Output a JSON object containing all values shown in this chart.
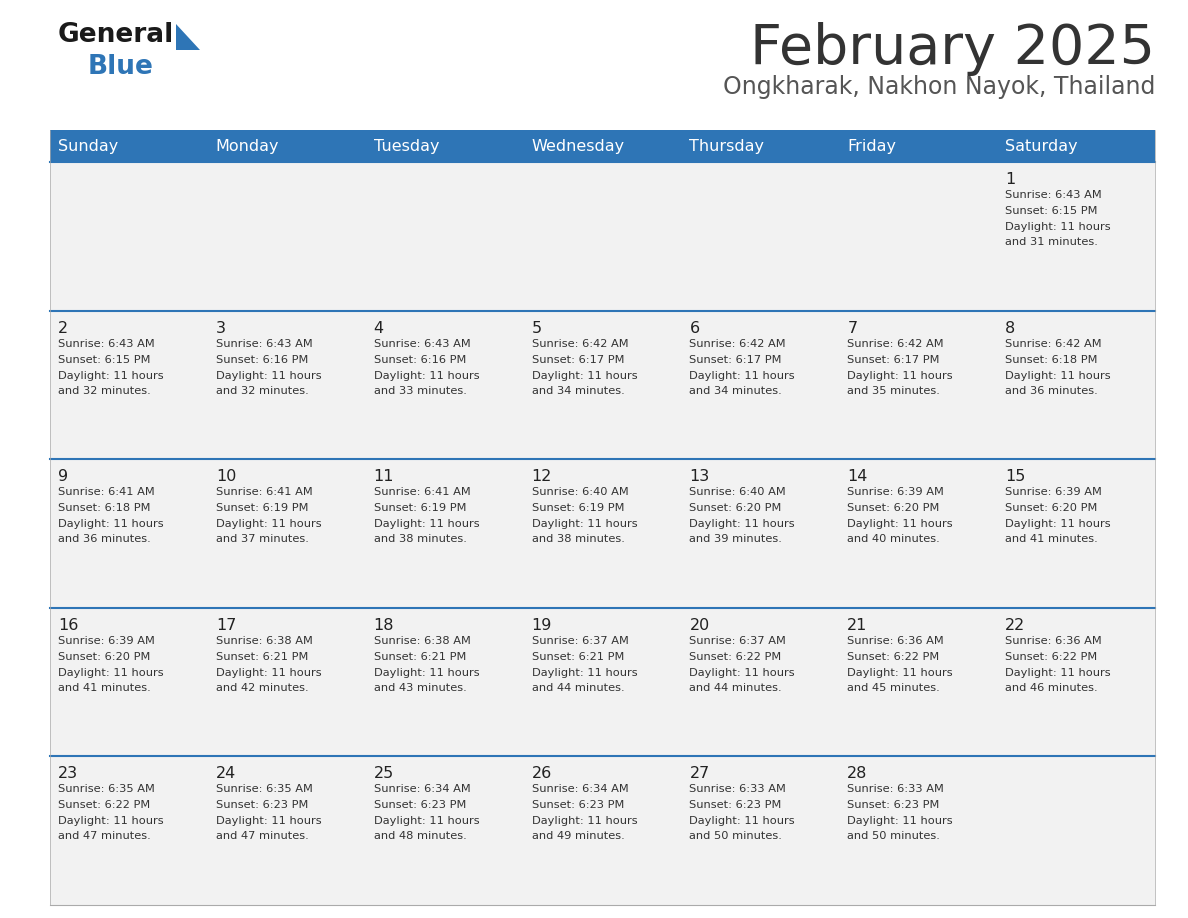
{
  "title": "February 2025",
  "subtitle": "Ongkharak, Nakhon Nayok, Thailand",
  "days_of_week": [
    "Sunday",
    "Monday",
    "Tuesday",
    "Wednesday",
    "Thursday",
    "Friday",
    "Saturday"
  ],
  "header_bg": "#2E75B6",
  "header_text": "#FFFFFF",
  "cell_bg": "#F2F2F2",
  "cell_text": "#222222",
  "divider_color": "#2E75B6",
  "title_color": "#333333",
  "subtitle_color": "#555555",
  "calendar": [
    [
      null,
      null,
      null,
      null,
      null,
      null,
      {
        "day": "1",
        "sunrise": "6:43 AM",
        "sunset": "6:15 PM",
        "daylight_line1": "Daylight: 11 hours",
        "daylight_line2": "and 31 minutes."
      }
    ],
    [
      {
        "day": "2",
        "sunrise": "6:43 AM",
        "sunset": "6:15 PM",
        "daylight_line1": "Daylight: 11 hours",
        "daylight_line2": "and 32 minutes."
      },
      {
        "day": "3",
        "sunrise": "6:43 AM",
        "sunset": "6:16 PM",
        "daylight_line1": "Daylight: 11 hours",
        "daylight_line2": "and 32 minutes."
      },
      {
        "day": "4",
        "sunrise": "6:43 AM",
        "sunset": "6:16 PM",
        "daylight_line1": "Daylight: 11 hours",
        "daylight_line2": "and 33 minutes."
      },
      {
        "day": "5",
        "sunrise": "6:42 AM",
        "sunset": "6:17 PM",
        "daylight_line1": "Daylight: 11 hours",
        "daylight_line2": "and 34 minutes."
      },
      {
        "day": "6",
        "sunrise": "6:42 AM",
        "sunset": "6:17 PM",
        "daylight_line1": "Daylight: 11 hours",
        "daylight_line2": "and 34 minutes."
      },
      {
        "day": "7",
        "sunrise": "6:42 AM",
        "sunset": "6:17 PM",
        "daylight_line1": "Daylight: 11 hours",
        "daylight_line2": "and 35 minutes."
      },
      {
        "day": "8",
        "sunrise": "6:42 AM",
        "sunset": "6:18 PM",
        "daylight_line1": "Daylight: 11 hours",
        "daylight_line2": "and 36 minutes."
      }
    ],
    [
      {
        "day": "9",
        "sunrise": "6:41 AM",
        "sunset": "6:18 PM",
        "daylight_line1": "Daylight: 11 hours",
        "daylight_line2": "and 36 minutes."
      },
      {
        "day": "10",
        "sunrise": "6:41 AM",
        "sunset": "6:19 PM",
        "daylight_line1": "Daylight: 11 hours",
        "daylight_line2": "and 37 minutes."
      },
      {
        "day": "11",
        "sunrise": "6:41 AM",
        "sunset": "6:19 PM",
        "daylight_line1": "Daylight: 11 hours",
        "daylight_line2": "and 38 minutes."
      },
      {
        "day": "12",
        "sunrise": "6:40 AM",
        "sunset": "6:19 PM",
        "daylight_line1": "Daylight: 11 hours",
        "daylight_line2": "and 38 minutes."
      },
      {
        "day": "13",
        "sunrise": "6:40 AM",
        "sunset": "6:20 PM",
        "daylight_line1": "Daylight: 11 hours",
        "daylight_line2": "and 39 minutes."
      },
      {
        "day": "14",
        "sunrise": "6:39 AM",
        "sunset": "6:20 PM",
        "daylight_line1": "Daylight: 11 hours",
        "daylight_line2": "and 40 minutes."
      },
      {
        "day": "15",
        "sunrise": "6:39 AM",
        "sunset": "6:20 PM",
        "daylight_line1": "Daylight: 11 hours",
        "daylight_line2": "and 41 minutes."
      }
    ],
    [
      {
        "day": "16",
        "sunrise": "6:39 AM",
        "sunset": "6:20 PM",
        "daylight_line1": "Daylight: 11 hours",
        "daylight_line2": "and 41 minutes."
      },
      {
        "day": "17",
        "sunrise": "6:38 AM",
        "sunset": "6:21 PM",
        "daylight_line1": "Daylight: 11 hours",
        "daylight_line2": "and 42 minutes."
      },
      {
        "day": "18",
        "sunrise": "6:38 AM",
        "sunset": "6:21 PM",
        "daylight_line1": "Daylight: 11 hours",
        "daylight_line2": "and 43 minutes."
      },
      {
        "day": "19",
        "sunrise": "6:37 AM",
        "sunset": "6:21 PM",
        "daylight_line1": "Daylight: 11 hours",
        "daylight_line2": "and 44 minutes."
      },
      {
        "day": "20",
        "sunrise": "6:37 AM",
        "sunset": "6:22 PM",
        "daylight_line1": "Daylight: 11 hours",
        "daylight_line2": "and 44 minutes."
      },
      {
        "day": "21",
        "sunrise": "6:36 AM",
        "sunset": "6:22 PM",
        "daylight_line1": "Daylight: 11 hours",
        "daylight_line2": "and 45 minutes."
      },
      {
        "day": "22",
        "sunrise": "6:36 AM",
        "sunset": "6:22 PM",
        "daylight_line1": "Daylight: 11 hours",
        "daylight_line2": "and 46 minutes."
      }
    ],
    [
      {
        "day": "23",
        "sunrise": "6:35 AM",
        "sunset": "6:22 PM",
        "daylight_line1": "Daylight: 11 hours",
        "daylight_line2": "and 47 minutes."
      },
      {
        "day": "24",
        "sunrise": "6:35 AM",
        "sunset": "6:23 PM",
        "daylight_line1": "Daylight: 11 hours",
        "daylight_line2": "and 47 minutes."
      },
      {
        "day": "25",
        "sunrise": "6:34 AM",
        "sunset": "6:23 PM",
        "daylight_line1": "Daylight: 11 hours",
        "daylight_line2": "and 48 minutes."
      },
      {
        "day": "26",
        "sunrise": "6:34 AM",
        "sunset": "6:23 PM",
        "daylight_line1": "Daylight: 11 hours",
        "daylight_line2": "and 49 minutes."
      },
      {
        "day": "27",
        "sunrise": "6:33 AM",
        "sunset": "6:23 PM",
        "daylight_line1": "Daylight: 11 hours",
        "daylight_line2": "and 50 minutes."
      },
      {
        "day": "28",
        "sunrise": "6:33 AM",
        "sunset": "6:23 PM",
        "daylight_line1": "Daylight: 11 hours",
        "daylight_line2": "and 50 minutes."
      },
      null
    ]
  ]
}
